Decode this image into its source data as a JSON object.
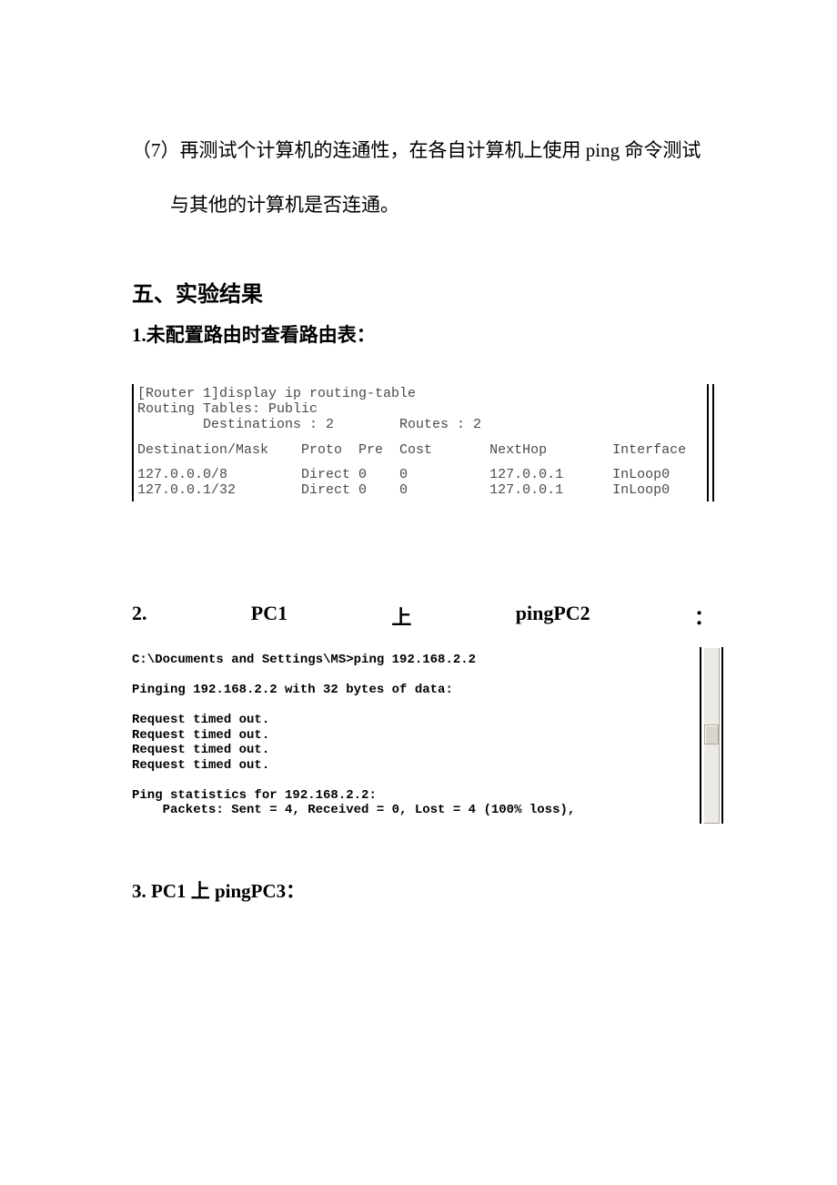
{
  "para7_line1": "（7）再测试个计算机的连通性，在各自计算机上使用 ping 命令测试",
  "para7_line2": "与其他的计算机是否连通。",
  "section5_title": "五、实验结果",
  "sub1_title": "1.未配置路由时查看路由表：",
  "routing": {
    "line1": "[Router 1]display ip routing-table",
    "line2": "Routing Tables: Public",
    "line3": "        Destinations : 2        Routes : 2",
    "header": "Destination/Mask    Proto  Pre  Cost       NextHop        Interface",
    "row1": "127.0.0.0/8         Direct 0    0          127.0.0.1      InLoop0",
    "row2": "127.0.0.1/32        Direct 0    0          127.0.0.1      InLoop0"
  },
  "sub2": {
    "num": "2.",
    "pc1": "PC1",
    "shang": "上",
    "ping": "pingPC2",
    "colon": "："
  },
  "cmd": {
    "l1": "C:\\Documents and Settings\\MS>ping 192.168.2.2",
    "l2": "Pinging 192.168.2.2 with 32 bytes of data:",
    "l3": "Request timed out.",
    "l4": "Request timed out.",
    "l5": "Request timed out.",
    "l6": "Request timed out.",
    "l7": "Ping statistics for 192.168.2.2:",
    "l8": "    Packets: Sent = 4, Received = 0, Lost = 4 (100% loss),"
  },
  "sub3_title": "3. PC1 上 pingPC3："
}
